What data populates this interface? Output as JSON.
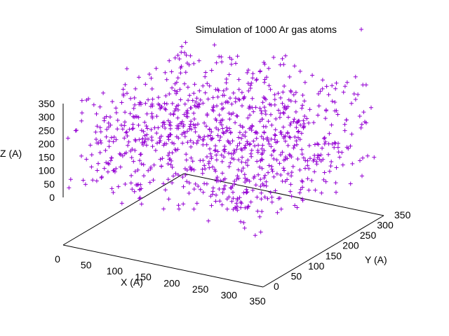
{
  "chart_data": {
    "type": "scatter",
    "subtype": "3d-scatter",
    "title": "",
    "legend": {
      "entries": [
        "Simulation of 1000 Ar gas atoms"
      ],
      "placement": "top-right",
      "marker": "+"
    },
    "series": [
      {
        "name": "Simulation of 1000 Ar gas atoms",
        "color": "#9400d3",
        "marker": "+",
        "count": 1000,
        "x_range": [
          0,
          350
        ],
        "y_range": [
          0,
          350
        ],
        "z_range": [
          0,
          350
        ]
      }
    ],
    "xlabel": "X (A)",
    "ylabel": "Y (A)",
    "zlabel": "Z (A)",
    "xlim": [
      0,
      350
    ],
    "ylim": [
      0,
      350
    ],
    "zlim": [
      0,
      350
    ],
    "x_ticks": [
      "0",
      "50",
      "100",
      "150",
      "200",
      "250",
      "300",
      "350"
    ],
    "y_ticks": [
      "0",
      "50",
      "100",
      "150",
      "200",
      "250",
      "300",
      "350"
    ],
    "z_ticks": [
      "0",
      "50",
      "100",
      "150",
      "200",
      "250",
      "300",
      "350"
    ],
    "grid": false,
    "view": "3d"
  }
}
